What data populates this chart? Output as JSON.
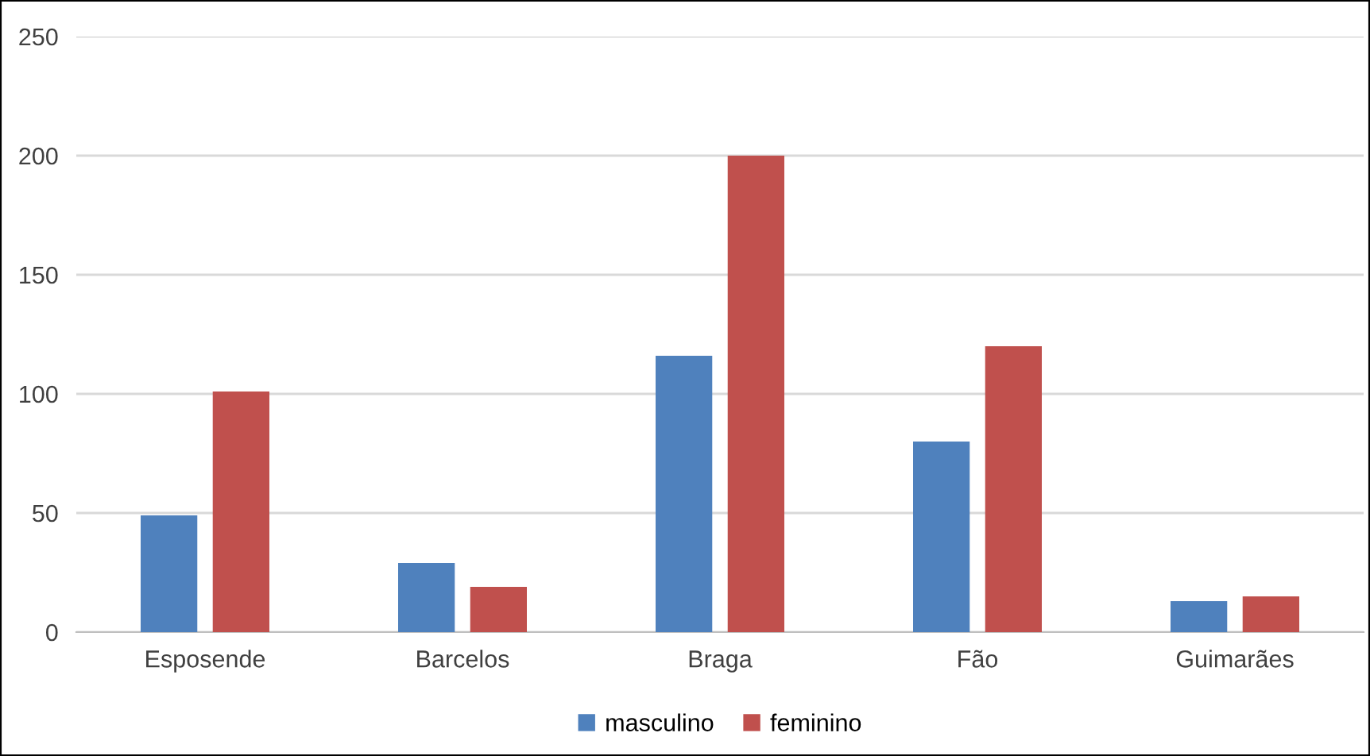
{
  "chart_data": {
    "type": "bar",
    "categories": [
      "Esposende",
      "Barcelos",
      "Braga",
      "Fão",
      "Guimarães"
    ],
    "series": [
      {
        "name": "masculino",
        "color": "#4f81bd",
        "values": [
          49,
          29,
          116,
          80,
          13
        ]
      },
      {
        "name": "feminino",
        "color": "#c0504d",
        "values": [
          101,
          19,
          200,
          120,
          15
        ]
      }
    ],
    "ylim": [
      0,
      250
    ],
    "yticks": [
      0,
      50,
      100,
      150,
      200,
      250
    ],
    "grid": "y",
    "legend": "bottom"
  }
}
